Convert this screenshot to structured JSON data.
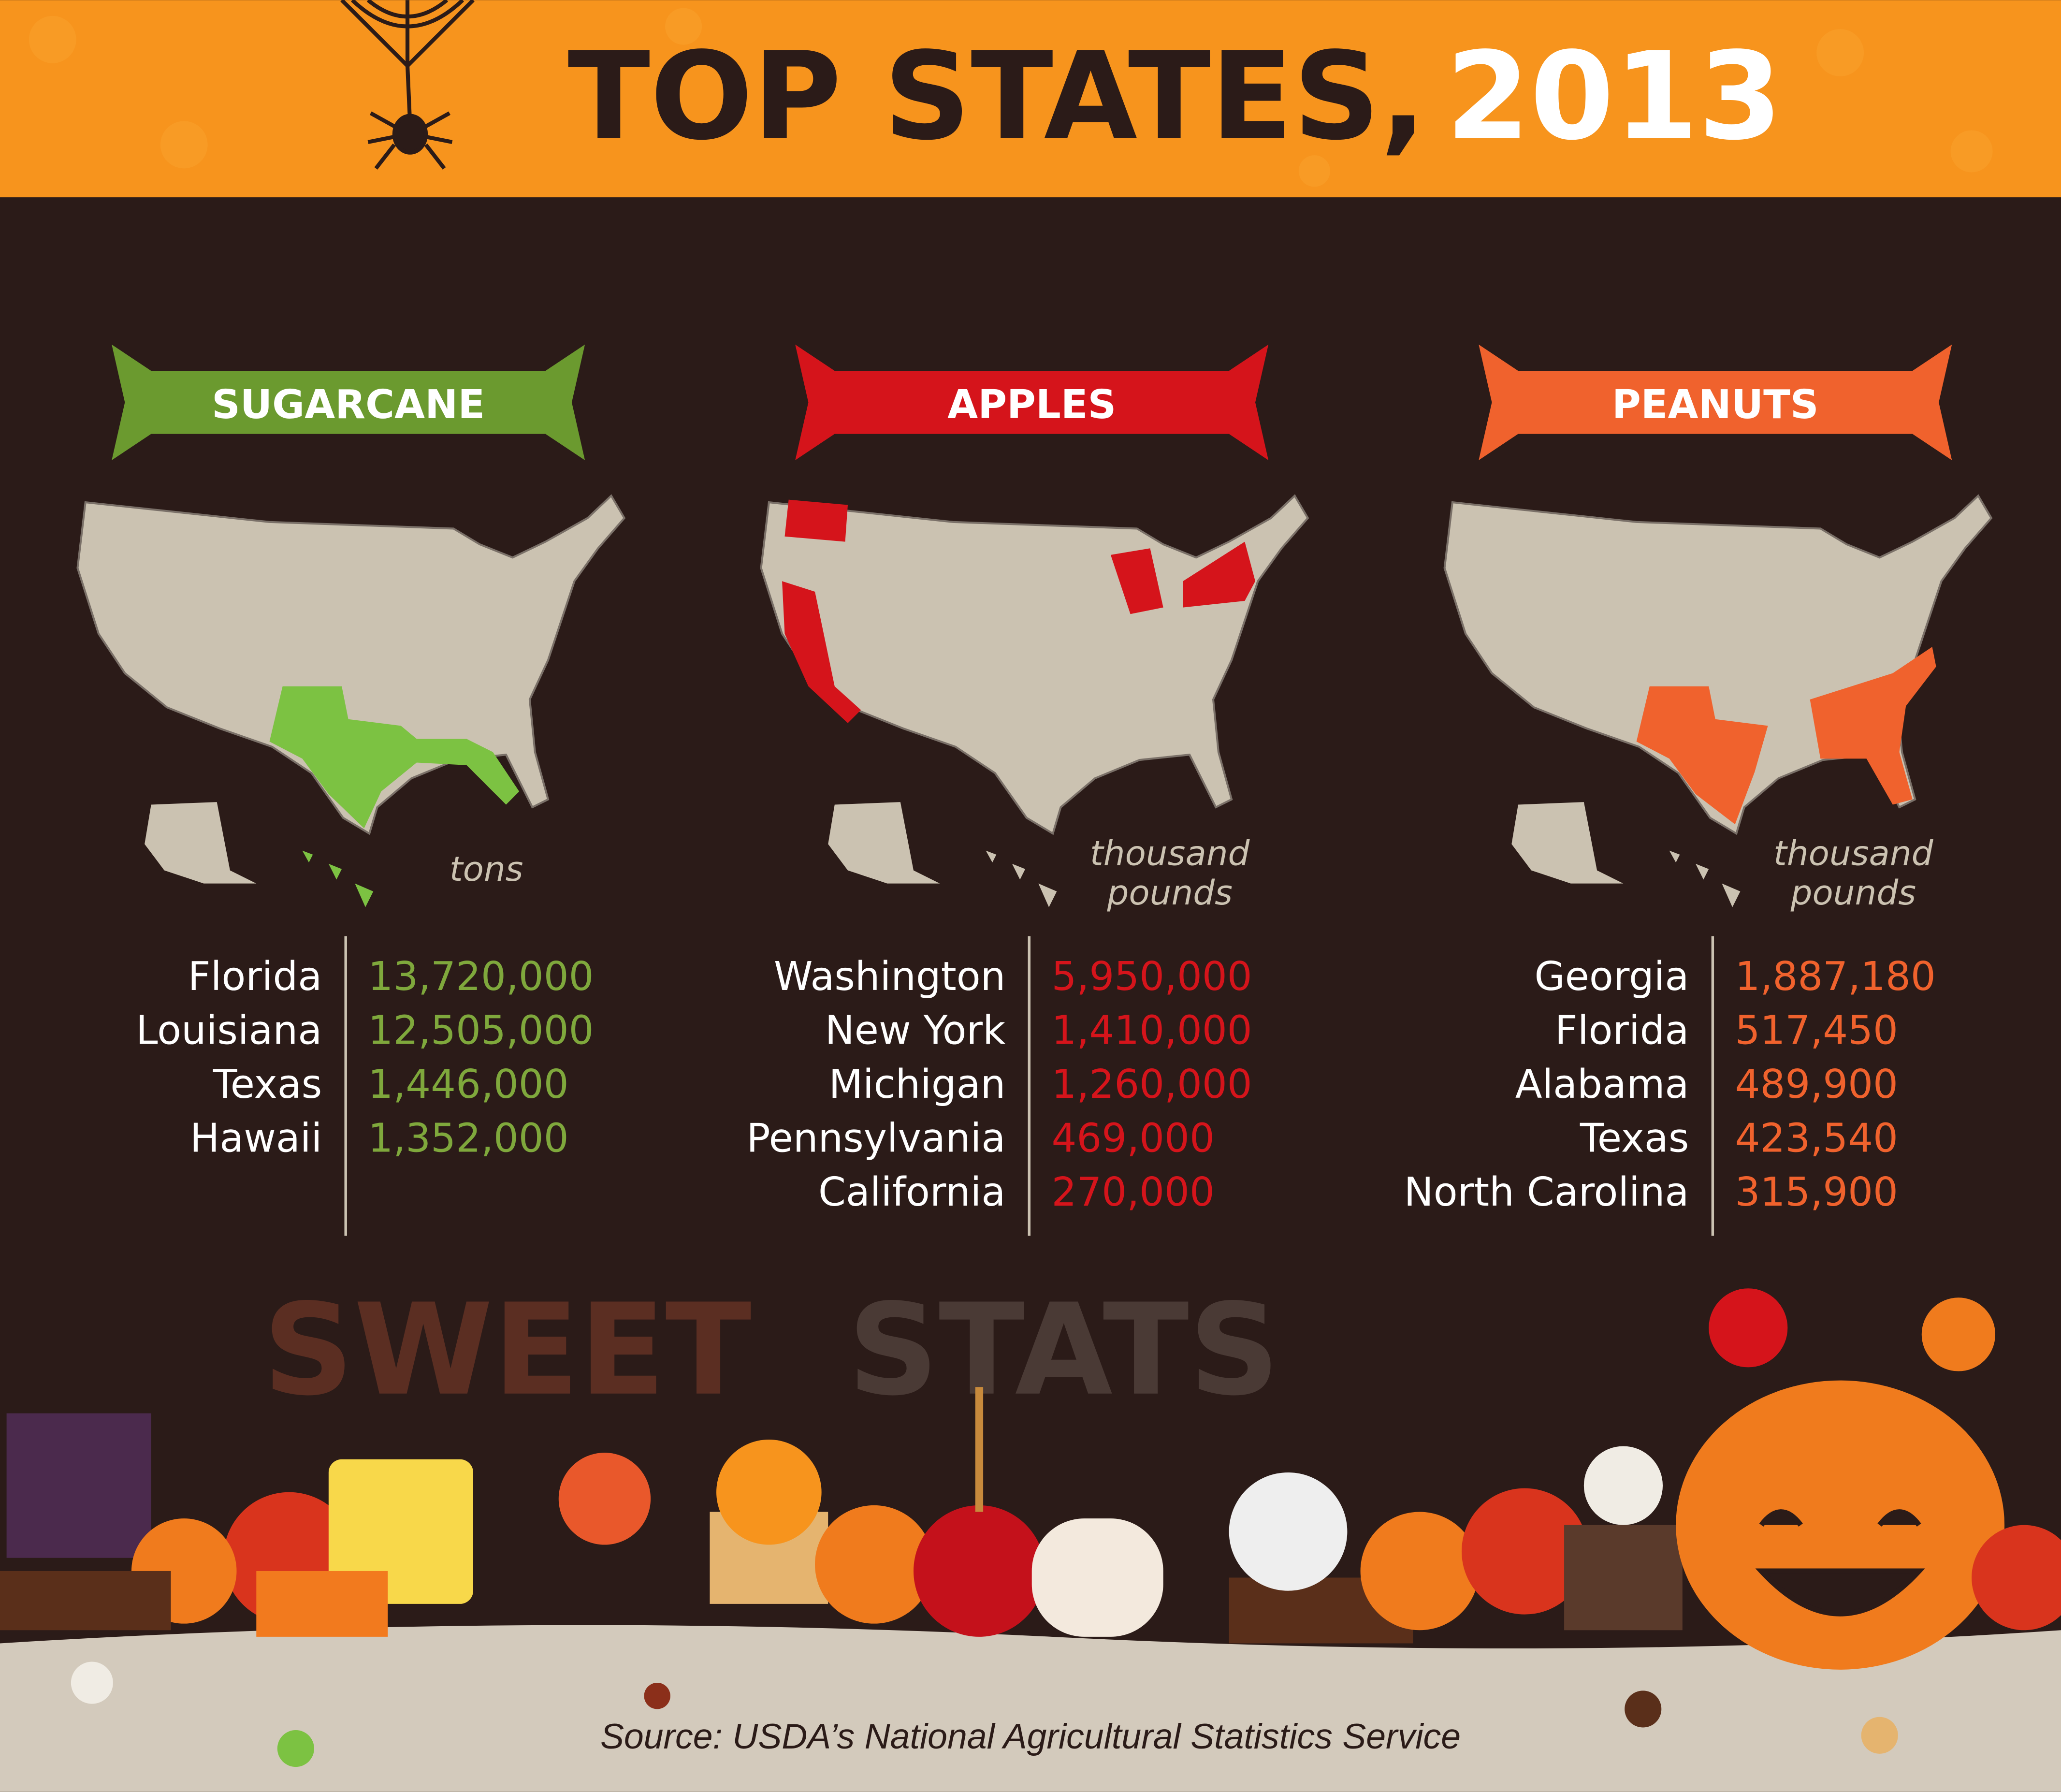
{
  "header": {
    "title_dark": "TOP STATES,",
    "title_light": "2013"
  },
  "panels": [
    {
      "label": "SUGARCANE",
      "unit": [
        "tons"
      ],
      "color": "#6b9a2f",
      "text_color": "#7fa83c",
      "map_color": "#7cc242",
      "rows": [
        [
          "Florida",
          "13,720,000"
        ],
        [
          "Louisiana",
          "12,505,000"
        ],
        [
          "Texas",
          "1,446,000"
        ],
        [
          "Hawaii",
          "1,352,000"
        ]
      ]
    },
    {
      "label": "APPLES",
      "unit": [
        "thousand",
        "pounds"
      ],
      "color": "#d5141b",
      "text_color": "#d5141b",
      "map_color": "#d5141b",
      "rows": [
        [
          "Washington",
          "5,950,000"
        ],
        [
          "New York",
          "1,410,000"
        ],
        [
          "Michigan",
          "1,260,000"
        ],
        [
          "Pennsylvania",
          "469,000"
        ],
        [
          "California",
          "270,000"
        ]
      ]
    },
    {
      "label": "PEANUTS",
      "unit": [
        "thousand",
        "pounds"
      ],
      "color": "#f0622d",
      "text_color": "#f0622d",
      "map_color": "#f0622d",
      "rows": [
        [
          "Georgia",
          "1,887,180"
        ],
        [
          "Florida",
          "517,450"
        ],
        [
          "Alabama",
          "489,900"
        ],
        [
          "Texas",
          "423,540"
        ],
        [
          "North Carolina",
          "315,900"
        ]
      ]
    }
  ],
  "footer": {
    "word1": "SWEET",
    "word2": "STATS",
    "source": "Source: USDA’s National Agricultural Statistics Service"
  }
}
